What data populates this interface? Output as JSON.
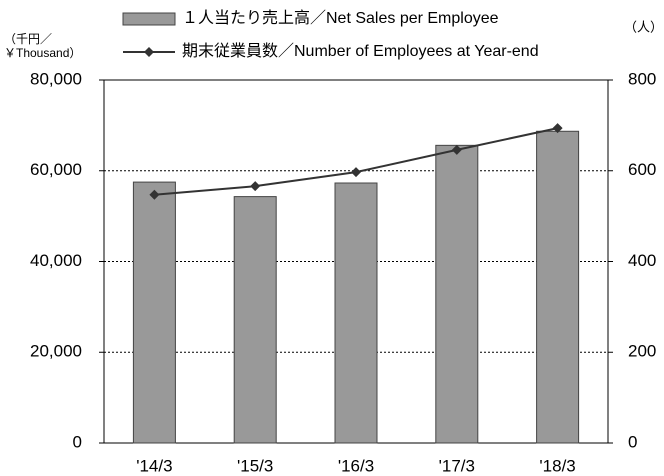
{
  "chart_data": {
    "type": "bar_line",
    "ylabel": [
      "（千円／",
      "￥Thousand）"
    ],
    "y2label": "（人）",
    "categories": [
      "'14/3",
      "'15/3",
      "'16/3",
      "'17/3",
      "'18/3"
    ],
    "series": [
      {
        "name": "１人当たり売上高／Net Sales per Employee",
        "type": "bar",
        "color": "#999999",
        "values": [
          57500,
          54300,
          57300,
          65600,
          68700
        ]
      },
      {
        "name": "期末従業員数／Number of Employees at Year-end",
        "type": "line",
        "color": "#333333",
        "axis": "y2",
        "values": [
          547,
          566,
          597,
          646,
          694
        ]
      }
    ],
    "ylim": [
      0,
      80000
    ],
    "yticks": [
      0,
      {
        "value": 20000,
        "label": "20,000"
      },
      {
        "value": 40000,
        "label": "40,000"
      },
      {
        "value": 60000,
        "label": "60,000"
      },
      {
        "value": 80000,
        "label": "80,000"
      }
    ],
    "y2lim": [
      0,
      800
    ],
    "y2ticks": [
      0,
      200,
      400,
      600,
      800
    ],
    "grid": true
  }
}
